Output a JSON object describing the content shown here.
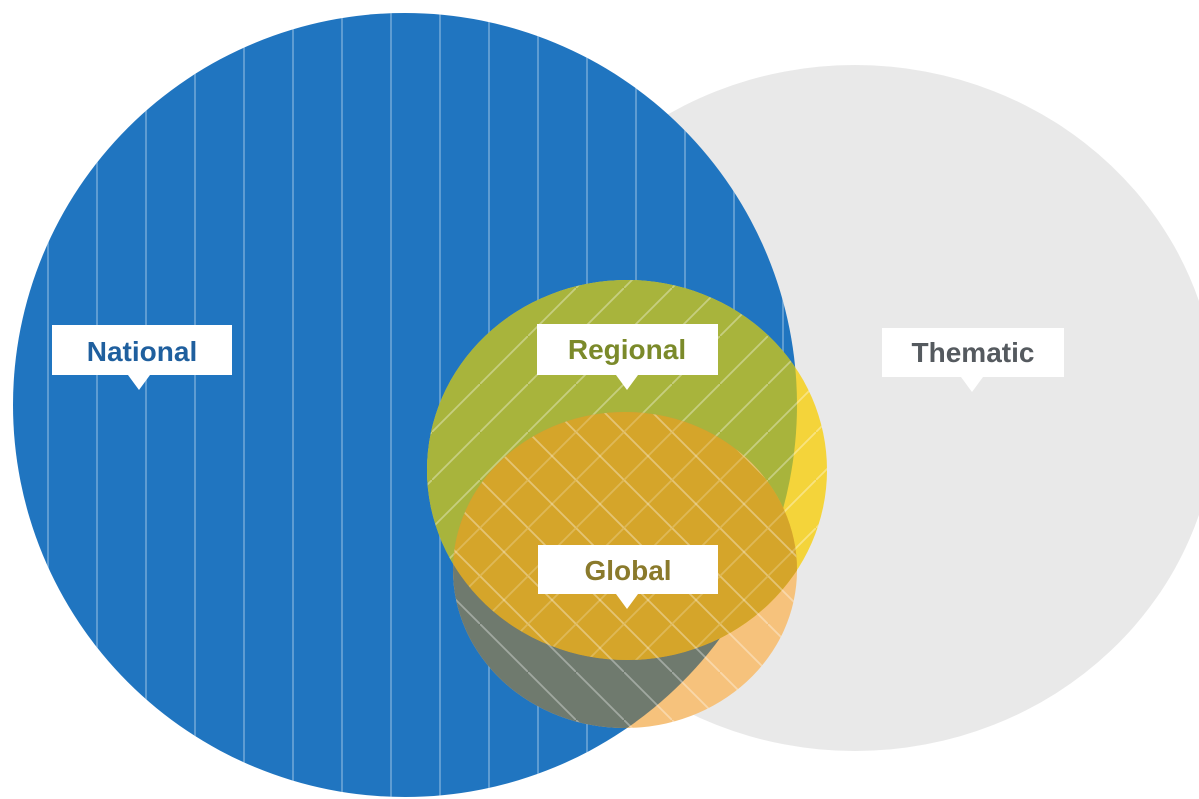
{
  "labels": {
    "national": "National",
    "regional": "Regional",
    "thematic": "Thematic",
    "global": "Global"
  },
  "colors": {
    "national_fill": "#2075c0",
    "national_text": "#1f5f9e",
    "thematic_fill": "#e9e9e9",
    "thematic_text": "#555a5f",
    "regional_fill": "#a8b43c",
    "regional_text": "#7b8a2a",
    "yellow_fill": "#f4d43a",
    "global_fill": "#e6a21a",
    "global_text": "#8a7a2c",
    "peach_fill": "#f6c27c",
    "hatch": "#ffffff",
    "label_bg": "#ffffff"
  }
}
